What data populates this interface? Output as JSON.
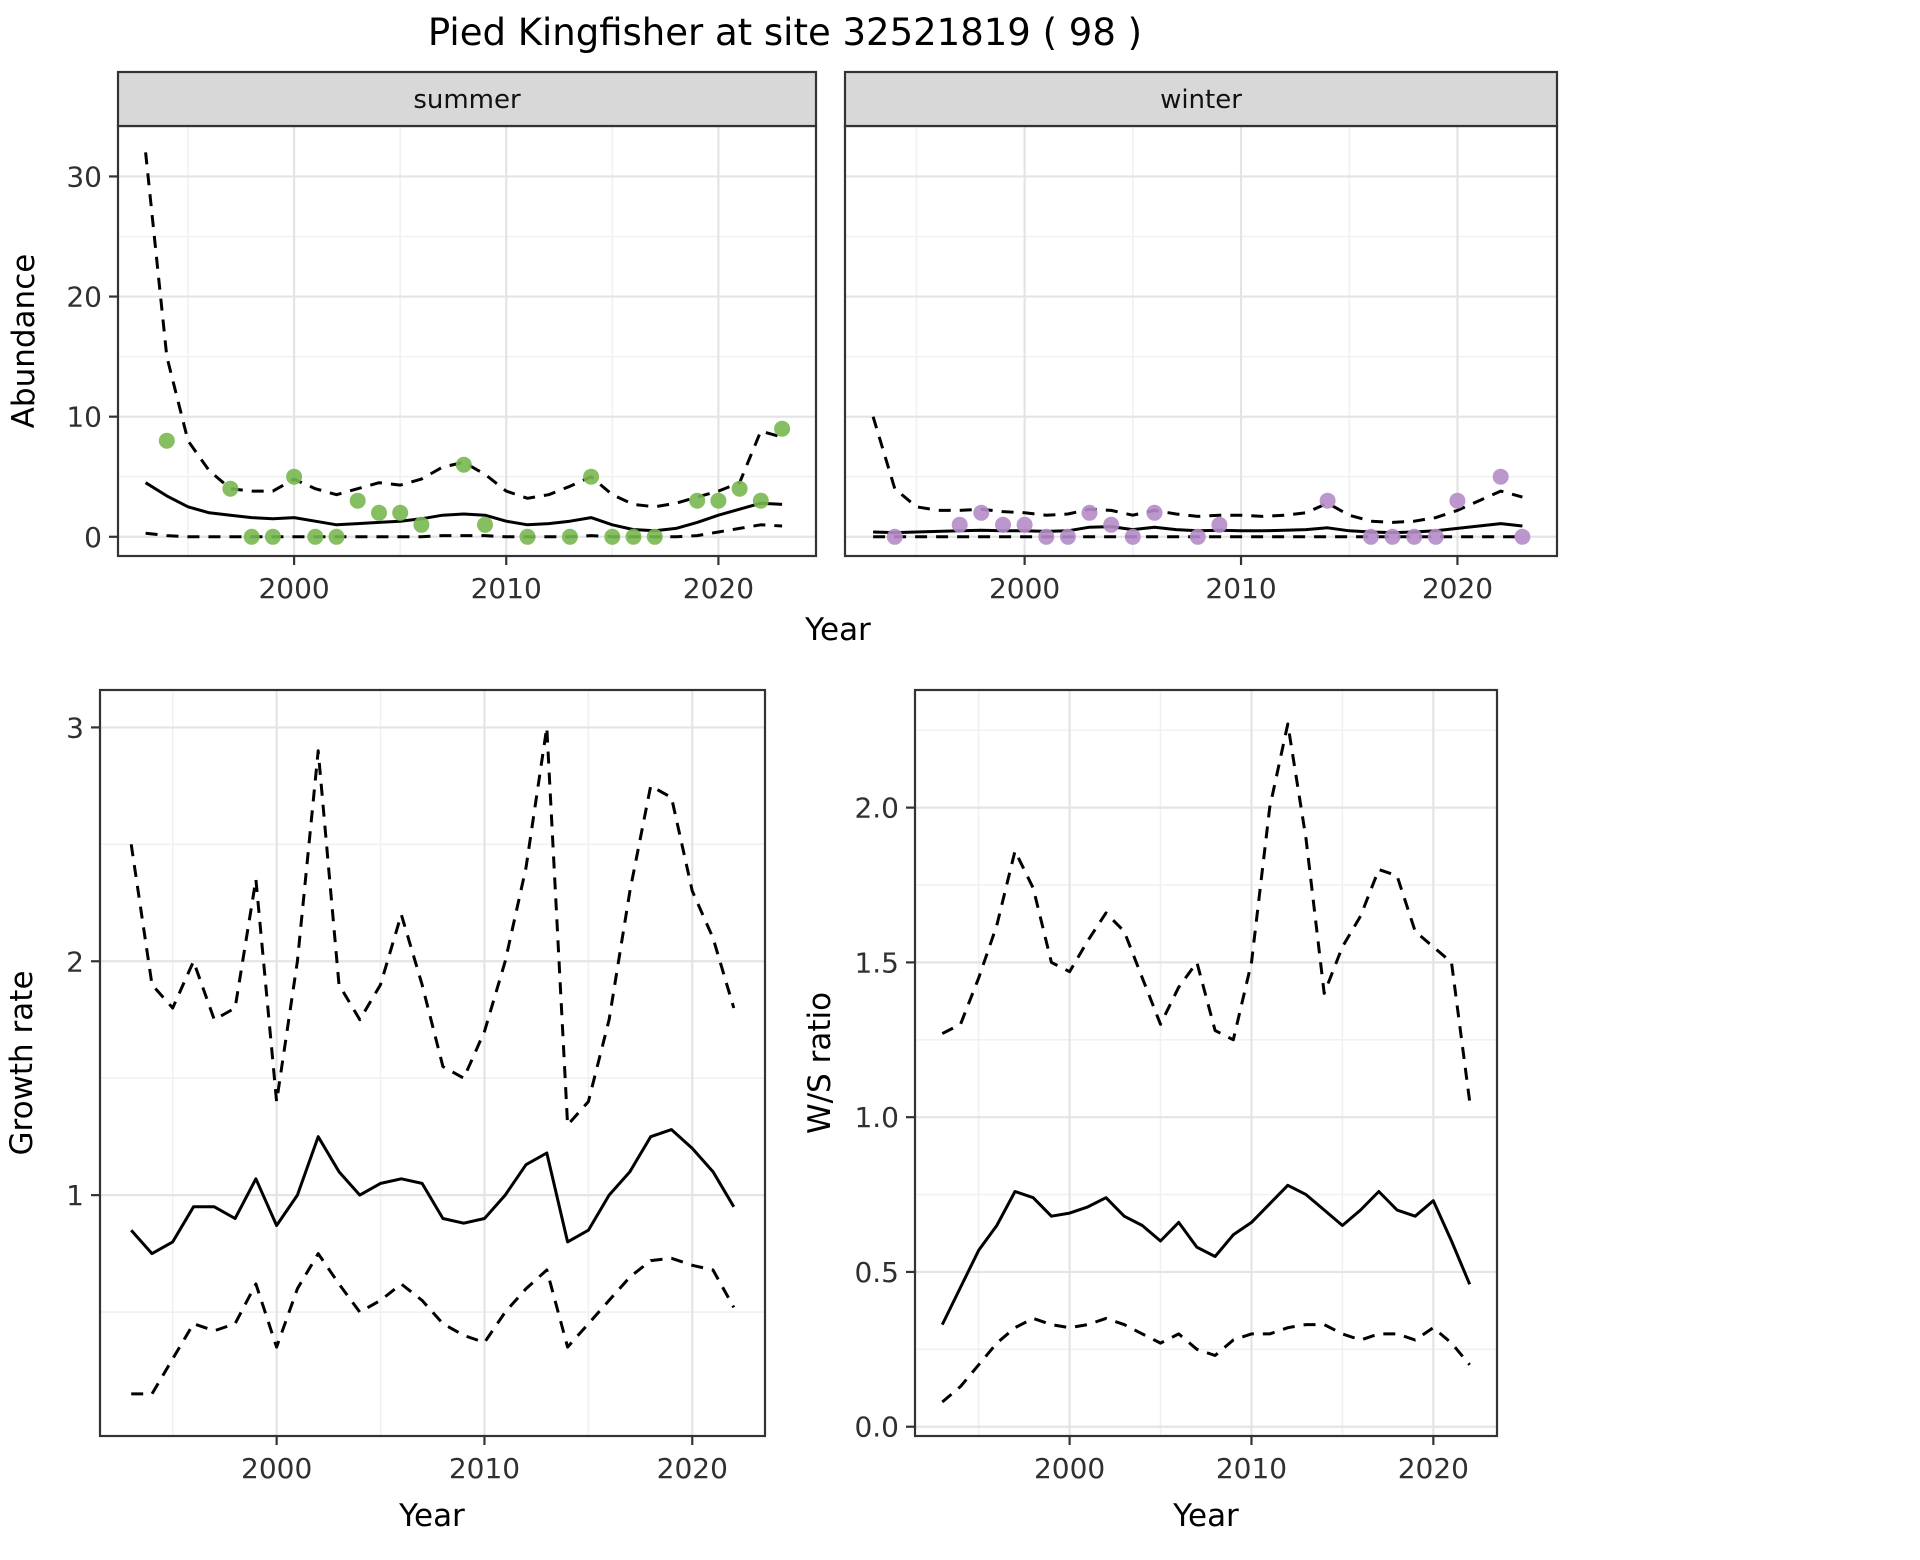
{
  "title": "Pied Kingfisher at site 32521819 ( 98 )",
  "theme": {
    "background": "#ffffff",
    "panel_border": "#333333",
    "grid_major": "#e4e4e4",
    "grid_minor": "#f1f1f1",
    "strip_bg": "#d8d8d8",
    "line_color": "#000000",
    "tick_text": "#303030",
    "summer_point": "#78b850",
    "winter_point": "#b48cc8"
  },
  "chart_data": [
    {
      "id": "abundance_summer",
      "type": "line+scatter",
      "facet_label": "summer",
      "xlabel": "Year",
      "ylabel": "Abundance",
      "xlim": [
        1991.7,
        2024.6
      ],
      "ylim": [
        -1.6,
        34.2
      ],
      "xticks": [
        2000,
        2010,
        2020
      ],
      "xtick_labels": [
        "2000",
        "2010",
        "2020"
      ],
      "yticks": [
        0,
        10,
        20,
        30
      ],
      "ytick_labels": [
        "0",
        "10",
        "20",
        "30"
      ],
      "grid": true,
      "legend": "none",
      "years": [
        1993,
        1994,
        1995,
        1996,
        1997,
        1998,
        1999,
        2000,
        2001,
        2002,
        2003,
        2004,
        2005,
        2006,
        2007,
        2008,
        2009,
        2010,
        2011,
        2012,
        2013,
        2014,
        2015,
        2016,
        2017,
        2018,
        2019,
        2020,
        2021,
        2022,
        2023
      ],
      "series": [
        {
          "name": "fit",
          "style": "solid",
          "values": [
            4.5,
            3.4,
            2.5,
            2.0,
            1.8,
            1.6,
            1.5,
            1.6,
            1.3,
            1.0,
            1.1,
            1.2,
            1.3,
            1.5,
            1.8,
            1.9,
            1.8,
            1.3,
            1.0,
            1.1,
            1.3,
            1.6,
            1.0,
            0.6,
            0.5,
            0.7,
            1.2,
            1.8,
            2.3,
            2.8,
            2.7
          ]
        },
        {
          "name": "upper_ci",
          "style": "dashed",
          "values": [
            32,
            15,
            8,
            5.5,
            4.0,
            3.8,
            3.8,
            4.8,
            4.0,
            3.5,
            4.0,
            4.5,
            4.3,
            4.8,
            5.8,
            6.2,
            5.2,
            3.8,
            3.2,
            3.5,
            4.2,
            5.0,
            3.5,
            2.7,
            2.5,
            2.8,
            3.3,
            3.8,
            4.5,
            8.8,
            8.3
          ]
        },
        {
          "name": "lower_ci",
          "style": "dashed",
          "values": [
            0.3,
            0.1,
            0,
            0,
            0,
            0,
            0,
            0,
            0,
            0,
            0,
            0,
            0,
            0,
            0.1,
            0.1,
            0.1,
            0,
            0,
            0,
            0,
            0.1,
            0,
            0,
            0,
            0,
            0.1,
            0.4,
            0.7,
            1.0,
            0.9
          ]
        }
      ],
      "points": {
        "x": [
          1994,
          1997,
          1998,
          1999,
          2000,
          2001,
          2002,
          2003,
          2004,
          2005,
          2006,
          2008,
          2009,
          2011,
          2013,
          2014,
          2015,
          2016,
          2017,
          2019,
          2020,
          2021,
          2022,
          2023
        ],
        "y": [
          8,
          4,
          0,
          0,
          5,
          0,
          0,
          3,
          2,
          2,
          1,
          6,
          1,
          0,
          0,
          5,
          0,
          0,
          0,
          3,
          3,
          4,
          3,
          9
        ]
      }
    },
    {
      "id": "abundance_winter",
      "type": "line+scatter",
      "facet_label": "winter",
      "xlabel": "Year",
      "ylabel": "Abundance",
      "xlim": [
        1991.7,
        2024.6
      ],
      "ylim": [
        -1.6,
        34.2
      ],
      "xticks": [
        2000,
        2010,
        2020
      ],
      "xtick_labels": [
        "2000",
        "2010",
        "2020"
      ],
      "yticks": [
        0,
        10,
        20,
        30
      ],
      "ytick_labels": [
        "0",
        "10",
        "20",
        "30"
      ],
      "grid": true,
      "legend": "none",
      "years": [
        1993,
        1994,
        1995,
        1996,
        1997,
        1998,
        1999,
        2000,
        2001,
        2002,
        2003,
        2004,
        2005,
        2006,
        2007,
        2008,
        2009,
        2010,
        2011,
        2012,
        2013,
        2014,
        2015,
        2016,
        2017,
        2018,
        2019,
        2020,
        2021,
        2022,
        2023
      ],
      "series": [
        {
          "name": "fit",
          "style": "solid",
          "values": [
            0.4,
            0.35,
            0.4,
            0.45,
            0.5,
            0.55,
            0.5,
            0.5,
            0.45,
            0.5,
            0.8,
            0.85,
            0.6,
            0.8,
            0.6,
            0.5,
            0.55,
            0.5,
            0.5,
            0.55,
            0.6,
            0.75,
            0.5,
            0.4,
            0.35,
            0.4,
            0.5,
            0.7,
            0.9,
            1.1,
            0.9
          ]
        },
        {
          "name": "upper_ci",
          "style": "dashed",
          "values": [
            10,
            4,
            2.5,
            2.2,
            2.2,
            2.3,
            2.1,
            2.0,
            1.8,
            1.9,
            2.3,
            2.2,
            1.8,
            2.2,
            1.9,
            1.7,
            1.8,
            1.8,
            1.7,
            1.8,
            2.0,
            2.8,
            1.8,
            1.3,
            1.2,
            1.3,
            1.6,
            2.2,
            3.0,
            3.8,
            3.3
          ]
        },
        {
          "name": "lower_ci",
          "style": "dashed",
          "values": [
            0,
            0,
            0,
            0,
            0,
            0,
            0,
            0,
            0,
            0,
            0,
            0,
            0,
            0,
            0,
            0,
            0,
            0,
            0,
            0,
            0,
            0,
            0,
            0,
            0,
            0,
            0,
            0,
            0,
            0,
            0
          ]
        }
      ],
      "points": {
        "x": [
          1994,
          1997,
          1998,
          1999,
          2000,
          2001,
          2002,
          2003,
          2004,
          2005,
          2006,
          2008,
          2009,
          2014,
          2016,
          2017,
          2018,
          2019,
          2020,
          2022,
          2023
        ],
        "y": [
          0,
          1,
          2,
          1,
          1,
          0,
          0,
          2,
          1,
          0,
          2,
          0,
          1,
          3,
          0,
          0,
          0,
          0,
          3,
          5,
          0
        ]
      }
    },
    {
      "id": "growth_rate",
      "type": "line",
      "facet_label": "",
      "xlabel": "Year",
      "ylabel": "Growth rate",
      "xlim": [
        1991.5,
        2023.5
      ],
      "ylim": [
        -0.03,
        3.16
      ],
      "xticks": [
        2000,
        2010,
        2020
      ],
      "xtick_labels": [
        "2000",
        "2010",
        "2020"
      ],
      "yticks": [
        1,
        2,
        3
      ],
      "ytick_labels": [
        "1",
        "2",
        "3"
      ],
      "grid": true,
      "legend": "none",
      "years": [
        1993,
        1994,
        1995,
        1996,
        1997,
        1998,
        1999,
        2000,
        2001,
        2002,
        2003,
        2004,
        2005,
        2006,
        2007,
        2008,
        2009,
        2010,
        2011,
        2012,
        2013,
        2014,
        2015,
        2016,
        2017,
        2018,
        2019,
        2020,
        2021,
        2022
      ],
      "series": [
        {
          "name": "fit",
          "style": "solid",
          "values": [
            0.85,
            0.75,
            0.8,
            0.95,
            0.95,
            0.9,
            1.07,
            0.87,
            1.0,
            1.25,
            1.1,
            1.0,
            1.05,
            1.07,
            1.05,
            0.9,
            0.88,
            0.9,
            1.0,
            1.13,
            1.18,
            0.8,
            0.85,
            1.0,
            1.1,
            1.25,
            1.28,
            1.2,
            1.1,
            0.95
          ]
        },
        {
          "name": "upper_ci",
          "style": "dashed",
          "values": [
            2.5,
            1.9,
            1.8,
            2.0,
            1.75,
            1.8,
            2.35,
            1.4,
            2.0,
            2.9,
            1.9,
            1.75,
            1.9,
            2.2,
            1.9,
            1.55,
            1.5,
            1.7,
            2.0,
            2.4,
            3.0,
            1.3,
            1.4,
            1.75,
            2.3,
            2.75,
            2.7,
            2.3,
            2.1,
            1.8
          ]
        },
        {
          "name": "lower_ci",
          "style": "dashed",
          "values": [
            0.15,
            0.15,
            0.3,
            0.45,
            0.42,
            0.45,
            0.62,
            0.35,
            0.6,
            0.75,
            0.62,
            0.5,
            0.55,
            0.62,
            0.55,
            0.45,
            0.4,
            0.37,
            0.5,
            0.6,
            0.68,
            0.35,
            0.45,
            0.55,
            0.65,
            0.72,
            0.73,
            0.7,
            0.68,
            0.52
          ]
        }
      ]
    },
    {
      "id": "ws_ratio",
      "type": "line",
      "facet_label": "",
      "xlabel": "Year",
      "ylabel": "W/S ratio",
      "xlim": [
        1991.5,
        2023.5
      ],
      "ylim": [
        -0.03,
        2.38
      ],
      "xticks": [
        2000,
        2010,
        2020
      ],
      "xtick_labels": [
        "2000",
        "2010",
        "2020"
      ],
      "yticks": [
        0,
        0.5,
        1,
        1.5,
        2
      ],
      "ytick_labels": [
        "0.0",
        "0.5",
        "1.0",
        "1.5",
        "2.0"
      ],
      "grid": true,
      "legend": "none",
      "years": [
        1993,
        1994,
        1995,
        1996,
        1997,
        1998,
        1999,
        2000,
        2001,
        2002,
        2003,
        2004,
        2005,
        2006,
        2007,
        2008,
        2009,
        2010,
        2011,
        2012,
        2013,
        2014,
        2015,
        2016,
        2017,
        2018,
        2019,
        2020,
        2021,
        2022
      ],
      "series": [
        {
          "name": "fit",
          "style": "solid",
          "values": [
            0.33,
            0.45,
            0.57,
            0.65,
            0.76,
            0.74,
            0.68,
            0.69,
            0.71,
            0.74,
            0.68,
            0.65,
            0.6,
            0.66,
            0.58,
            0.55,
            0.62,
            0.66,
            0.72,
            0.78,
            0.75,
            0.7,
            0.65,
            0.7,
            0.76,
            0.7,
            0.68,
            0.73,
            0.6,
            0.46
          ]
        },
        {
          "name": "upper_ci",
          "style": "dashed",
          "values": [
            1.27,
            1.3,
            1.45,
            1.62,
            1.86,
            1.74,
            1.5,
            1.47,
            1.57,
            1.66,
            1.6,
            1.45,
            1.3,
            1.42,
            1.5,
            1.28,
            1.25,
            1.5,
            2.0,
            2.27,
            1.9,
            1.4,
            1.55,
            1.65,
            1.8,
            1.78,
            1.6,
            1.55,
            1.5,
            1.05
          ]
        },
        {
          "name": "lower_ci",
          "style": "dashed",
          "values": [
            0.08,
            0.13,
            0.2,
            0.27,
            0.32,
            0.35,
            0.33,
            0.32,
            0.33,
            0.35,
            0.33,
            0.3,
            0.27,
            0.3,
            0.25,
            0.23,
            0.28,
            0.3,
            0.3,
            0.32,
            0.33,
            0.33,
            0.3,
            0.28,
            0.3,
            0.3,
            0.28,
            0.32,
            0.27,
            0.2
          ]
        }
      ]
    }
  ]
}
